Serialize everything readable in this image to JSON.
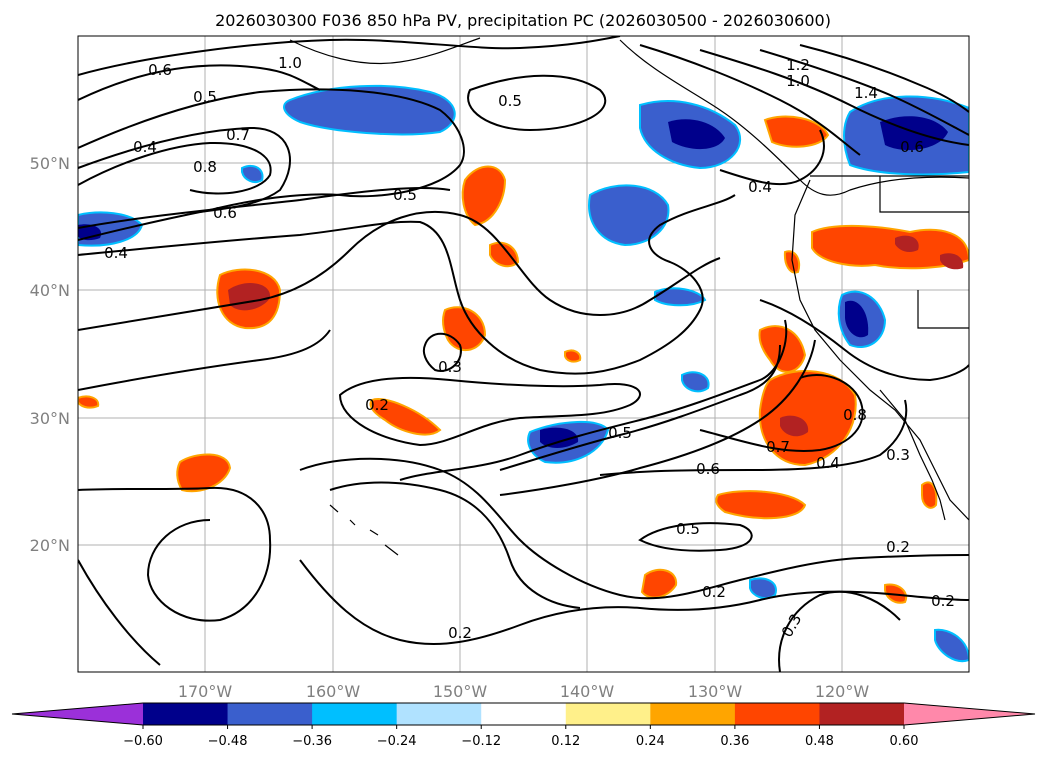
{
  "title": "2026030300 F036 850 hPa PV, precipitation PC (2026030500 - 2026030600)",
  "map": {
    "lat_labels": [
      "50°N",
      "40°N",
      "30°N",
      "20°N"
    ],
    "lon_labels": [
      "170°W",
      "160°W",
      "150°W",
      "140°W",
      "130°W",
      "120°W"
    ],
    "contour_labels": [
      "0.6",
      "0.5",
      "1.0",
      "0.4",
      "0.7",
      "0.8",
      "0.6",
      "0.4",
      "0.5",
      "0.5",
      "1.2",
      "1.0",
      "1.4",
      "0.6",
      "0.4",
      "0.3",
      "0.2",
      "0.5",
      "0.6",
      "0.7",
      "0.8",
      "0.4",
      "0.3",
      "0.5",
      "0.2",
      "0.2",
      "0.2",
      "0.3",
      "0.2"
    ]
  },
  "colorbar": {
    "ticks": [
      "−0.60",
      "−0.48",
      "−0.36",
      "−0.24",
      "−0.12",
      "0.12",
      "0.24",
      "0.36",
      "0.48",
      "0.60"
    ],
    "colors": {
      "extend_low": "#9b30d9",
      "bins": [
        "#00008b",
        "#3a5fcd",
        "#00bfff",
        "#b0e2ff",
        "#ffffff",
        "#fff08a",
        "#ffa500",
        "#ff4500",
        "#b22222",
        "#ff88aa"
      ],
      "extend_high": "#ff88aa"
    }
  }
}
